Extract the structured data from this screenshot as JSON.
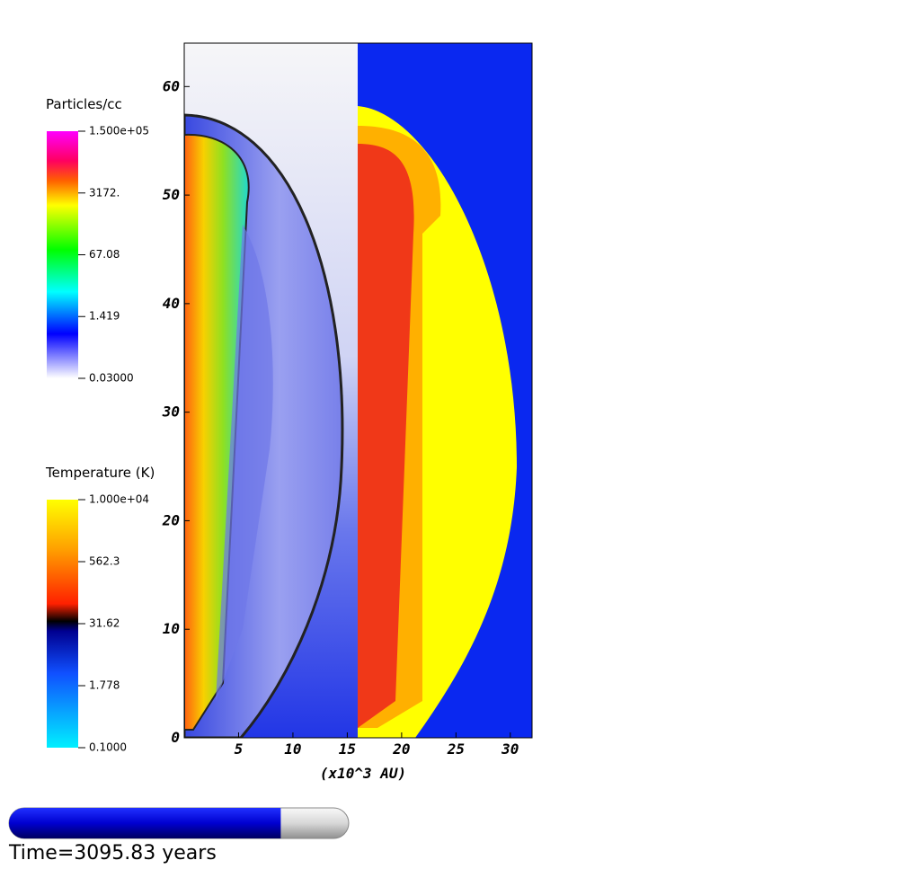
{
  "plot": {
    "xlabel": "(x10^3 AU)",
    "xlim": [
      0,
      32
    ],
    "xticks": [
      5,
      10,
      15,
      20,
      25,
      30
    ],
    "ylim": [
      0,
      64
    ],
    "yticks": [
      0,
      10,
      20,
      30,
      40,
      50,
      60
    ]
  },
  "colorbars": [
    {
      "title": "Particles/cc",
      "log": true,
      "range": [
        0.03,
        150000
      ],
      "ticks": [
        {
          "value": 150000,
          "label": "1.500e+05"
        },
        {
          "value": 3172,
          "label": "3172."
        },
        67.08,
        1.419,
        {
          "value": 0.03,
          "label": "0.03000"
        }
      ]
    },
    {
      "title": "Temperature (K)",
      "log": true,
      "range": [
        0.1,
        10000
      ],
      "ticks": [
        {
          "value": 10000,
          "label": "1.000e+04"
        },
        562.3,
        31.62,
        1.778,
        {
          "value": 0.1,
          "label": "0.1000"
        }
      ]
    }
  ],
  "progress": 0.8,
  "time_label": "Time=3095.83 years"
}
